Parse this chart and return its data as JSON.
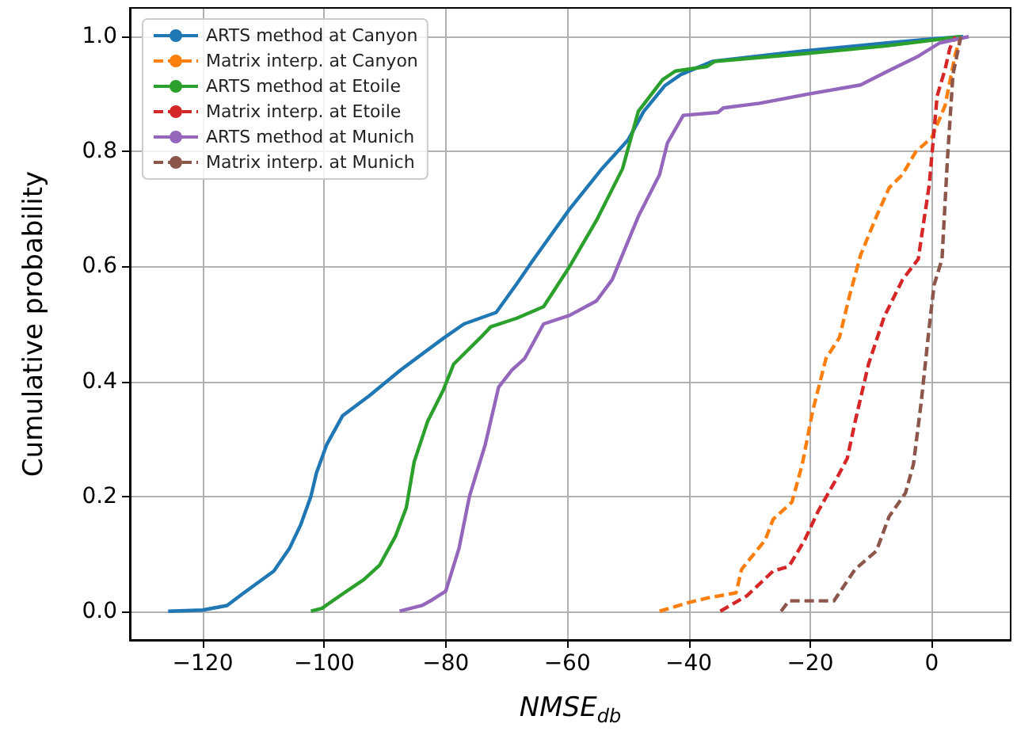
{
  "chart_data": {
    "type": "line",
    "xlabel": "NMSE$_{db}$",
    "ylabel": "Cumulative probability",
    "xlim": [
      -132,
      13
    ],
    "ylim": [
      -0.05,
      1.05
    ],
    "xticks": [
      -120,
      -100,
      -80,
      -60,
      -40,
      -20,
      0
    ],
    "yticks": [
      {
        "value": 0,
        "label": "0.0"
      },
      {
        "value": 0.2,
        "label": "0.2"
      },
      {
        "value": 0.4,
        "label": "0.4"
      },
      {
        "value": 0.6,
        "label": "0.6"
      },
      {
        "value": 0.8,
        "label": "0.8"
      },
      {
        "value": 1,
        "label": "1.0"
      }
    ],
    "grid": true,
    "legend": "top left",
    "marker": "none",
    "series": [
      {
        "name": "ARTS method at Canyon",
        "color": "#1f77b4",
        "line_style": "solid",
        "x": [
          -125.7,
          -120,
          -116,
          -113.5,
          -110.9,
          -108.3,
          -105.7,
          -103.9,
          -102.2,
          -101.3,
          -99.6,
          -97,
          -92.6,
          -87.4,
          -80.4,
          -77,
          -71.7,
          -68.3,
          -65.7,
          -63,
          -59.6,
          -54.3,
          -50,
          -47.4,
          -43.9,
          -41.3,
          -36.1,
          -21.3,
          -7.4,
          0,
          5.2
        ],
        "values": [
          0,
          0.002,
          0.01,
          0.03,
          0.05,
          0.07,
          0.11,
          0.15,
          0.2,
          0.24,
          0.29,
          0.34,
          0.375,
          0.42,
          0.475,
          0.5,
          0.52,
          0.57,
          0.61,
          0.65,
          0.7,
          0.77,
          0.82,
          0.87,
          0.915,
          0.934,
          0.957,
          0.975,
          0.989,
          0.996,
          1
        ]
      },
      {
        "name": "Matrix interp. at Canyon",
        "color": "#ff7f0e",
        "line_style": "dashed",
        "x": [
          -44.8,
          -40.4,
          -37,
          -32.2,
          -31.3,
          -27.4,
          -26.1,
          -23,
          -21.3,
          -19.6,
          -17.4,
          -15.2,
          -13.5,
          -11.7,
          -9.1,
          -7,
          -4.8,
          -2.6,
          0,
          2.2,
          3.9,
          4.8
        ],
        "values": [
          0,
          0.014,
          0.023,
          0.032,
          0.073,
          0.124,
          0.16,
          0.19,
          0.256,
          0.348,
          0.44,
          0.476,
          0.55,
          0.62,
          0.687,
          0.737,
          0.76,
          0.8,
          0.824,
          0.88,
          0.97,
          1
        ]
      },
      {
        "name": "ARTS method at Etoile",
        "color": "#2ca02c",
        "line_style": "solid",
        "x": [
          -102.2,
          -100.4,
          -97,
          -93.5,
          -90.9,
          -88.3,
          -86.5,
          -85.2,
          -83,
          -80.4,
          -78.7,
          -74.3,
          -72.6,
          -68.3,
          -63.9,
          -59.6,
          -55.2,
          -50.9,
          -48.3,
          -44.3,
          -42.2,
          -37,
          -35.7,
          -21.3,
          -7.4,
          4.8
        ],
        "values": [
          0,
          0.005,
          0.03,
          0.055,
          0.08,
          0.13,
          0.18,
          0.26,
          0.33,
          0.385,
          0.43,
          0.476,
          0.495,
          0.51,
          0.53,
          0.6,
          0.68,
          0.77,
          0.87,
          0.925,
          0.94,
          0.948,
          0.957,
          0.97,
          0.984,
          1
        ]
      },
      {
        "name": "Matrix interp. at Etoile",
        "color": "#d62728",
        "line_style": "dashed",
        "x": [
          -34.8,
          -30.4,
          -26.1,
          -23.5,
          -20.9,
          -18.7,
          -15.7,
          -13.9,
          -12.6,
          -10.4,
          -7.8,
          -4.8,
          -2.2,
          -1.7,
          -0.4,
          0.9,
          2.2,
          3,
          3.9
        ],
        "values": [
          0,
          0.027,
          0.07,
          0.078,
          0.124,
          0.174,
          0.23,
          0.266,
          0.33,
          0.43,
          0.513,
          0.577,
          0.613,
          0.65,
          0.742,
          0.897,
          0.943,
          0.98,
          1
        ]
      },
      {
        "name": "ARTS method at Munich",
        "color": "#9467bd",
        "line_style": "solid",
        "x": [
          -87.6,
          -83.9,
          -82.2,
          -80,
          -77.8,
          -76.1,
          -73.5,
          -71.3,
          -69.1,
          -67,
          -63.9,
          -59.6,
          -55.2,
          -52.6,
          -51.7,
          -48.3,
          -44.8,
          -43.5,
          -40.9,
          -35.2,
          -34.3,
          -28.3,
          -20.4,
          -11.7,
          -7.4,
          -2.2,
          1.3,
          6.1
        ],
        "values": [
          0,
          0.01,
          0.02,
          0.035,
          0.11,
          0.2,
          0.29,
          0.39,
          0.42,
          0.44,
          0.5,
          0.515,
          0.54,
          0.577,
          0.6,
          0.687,
          0.76,
          0.815,
          0.863,
          0.868,
          0.876,
          0.884,
          0.9,
          0.916,
          0.939,
          0.966,
          0.989,
          1
        ]
      },
      {
        "name": "Matrix interp. at Munich",
        "color": "#8c564b",
        "line_style": "dashed",
        "x": [
          -24.8,
          -23.5,
          -16.1,
          -12.6,
          -9.1,
          -7,
          -4.3,
          -3,
          -1.7,
          -0.4,
          0.4,
          1.7,
          2.6,
          3.5,
          4.8
        ],
        "values": [
          0,
          0.018,
          0.018,
          0.073,
          0.105,
          0.165,
          0.206,
          0.256,
          0.366,
          0.495,
          0.568,
          0.613,
          0.788,
          0.934,
          1
        ]
      }
    ]
  }
}
